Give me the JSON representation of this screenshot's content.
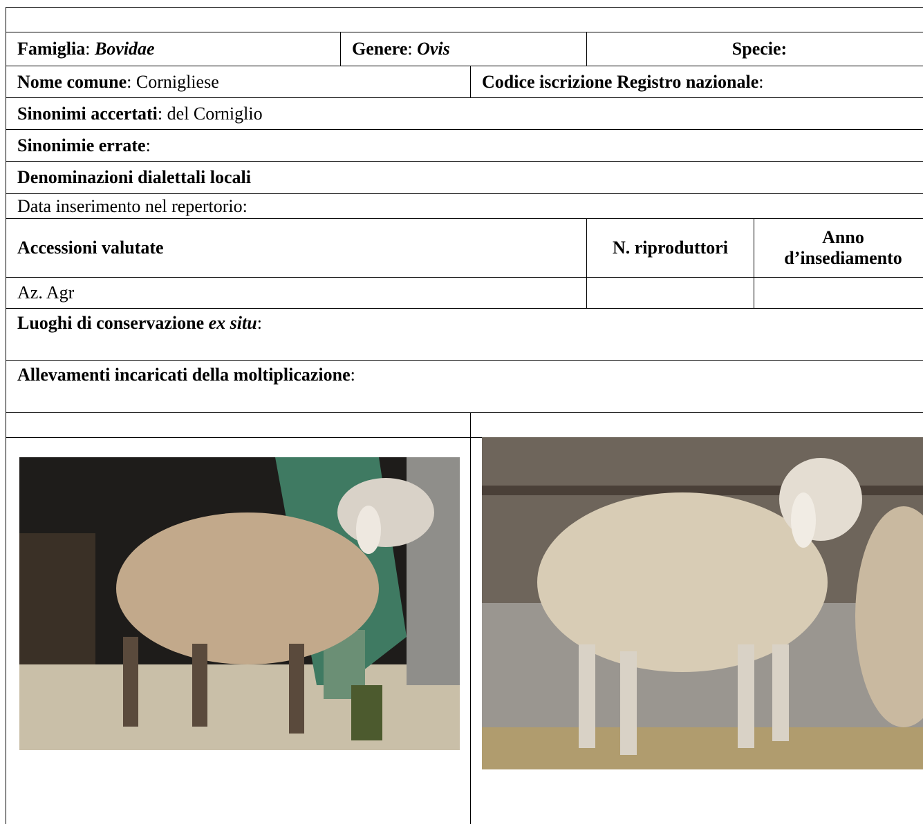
{
  "form": {
    "family": {
      "label": "Famiglia",
      "sep": ": ",
      "value": "Bovidae"
    },
    "genus": {
      "label": "Genere",
      "sep": ": ",
      "value": "Ovis"
    },
    "species": {
      "label": "Specie:"
    },
    "common_name": {
      "label": "Nome comune",
      "sep": ": ",
      "value": "Cornigliese"
    },
    "registry_code": {
      "label": "Codice iscrizione Registro nazionale",
      "sep": ":"
    },
    "confirmed_synonyms": {
      "label": "Sinonimi accertati",
      "sep": ": ",
      "value": "del Corniglio"
    },
    "wrong_synonyms": {
      "label": "Sinonimie errate",
      "sep": ":"
    },
    "dialect_names": {
      "label": "Denominazioni dialettali locali"
    },
    "entry_date": "Data inserimento nel repertorio:",
    "accessions": {
      "headers": [
        "Accessioni valutate",
        "N. riproduttori",
        "Anno d’insediamento"
      ],
      "rows": [
        [
          "Az. Agr"
        ]
      ]
    },
    "ex_situ": {
      "label": "Luoghi di conservazione ",
      "label_italic": "ex situ",
      "sep": ":"
    },
    "breeders": {
      "label": "Allevamenti incaricati della moltiplicazione",
      "sep": ":"
    }
  }
}
